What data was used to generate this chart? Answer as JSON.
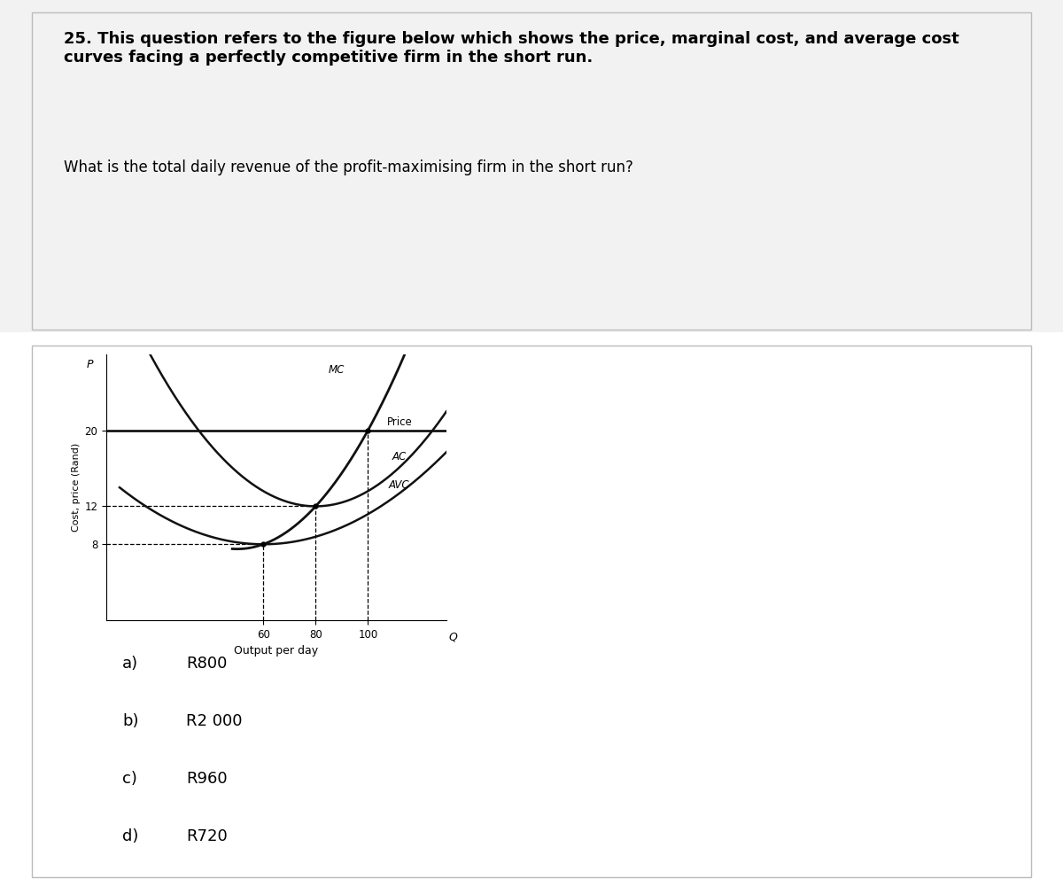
{
  "title_bold": "25. This question refers to the figure below which shows the price, marginal cost, and average cost\ncurves facing a perfectly competitive firm in the short run.",
  "question": "What is the total daily revenue of the profit-maximising firm in the short run?",
  "options": [
    {
      "label": "a)",
      "value": "R800"
    },
    {
      "label": "b)",
      "value": "R2 000"
    },
    {
      "label": "c)",
      "value": "R960"
    },
    {
      "label": "d)",
      "value": "R720"
    }
  ],
  "ylabel": "Cost, price (Rand)",
  "xlabel": "Output per day",
  "price_level": 20,
  "xmax": 130,
  "ymax": 28,
  "yticks": [
    8,
    12,
    20
  ],
  "xticks": [
    60,
    80,
    100
  ],
  "background_color": "#ffffff",
  "top_section_bg": "#f2f2f2",
  "divider_color": "#bbbbbb",
  "curve_color": "#111111"
}
